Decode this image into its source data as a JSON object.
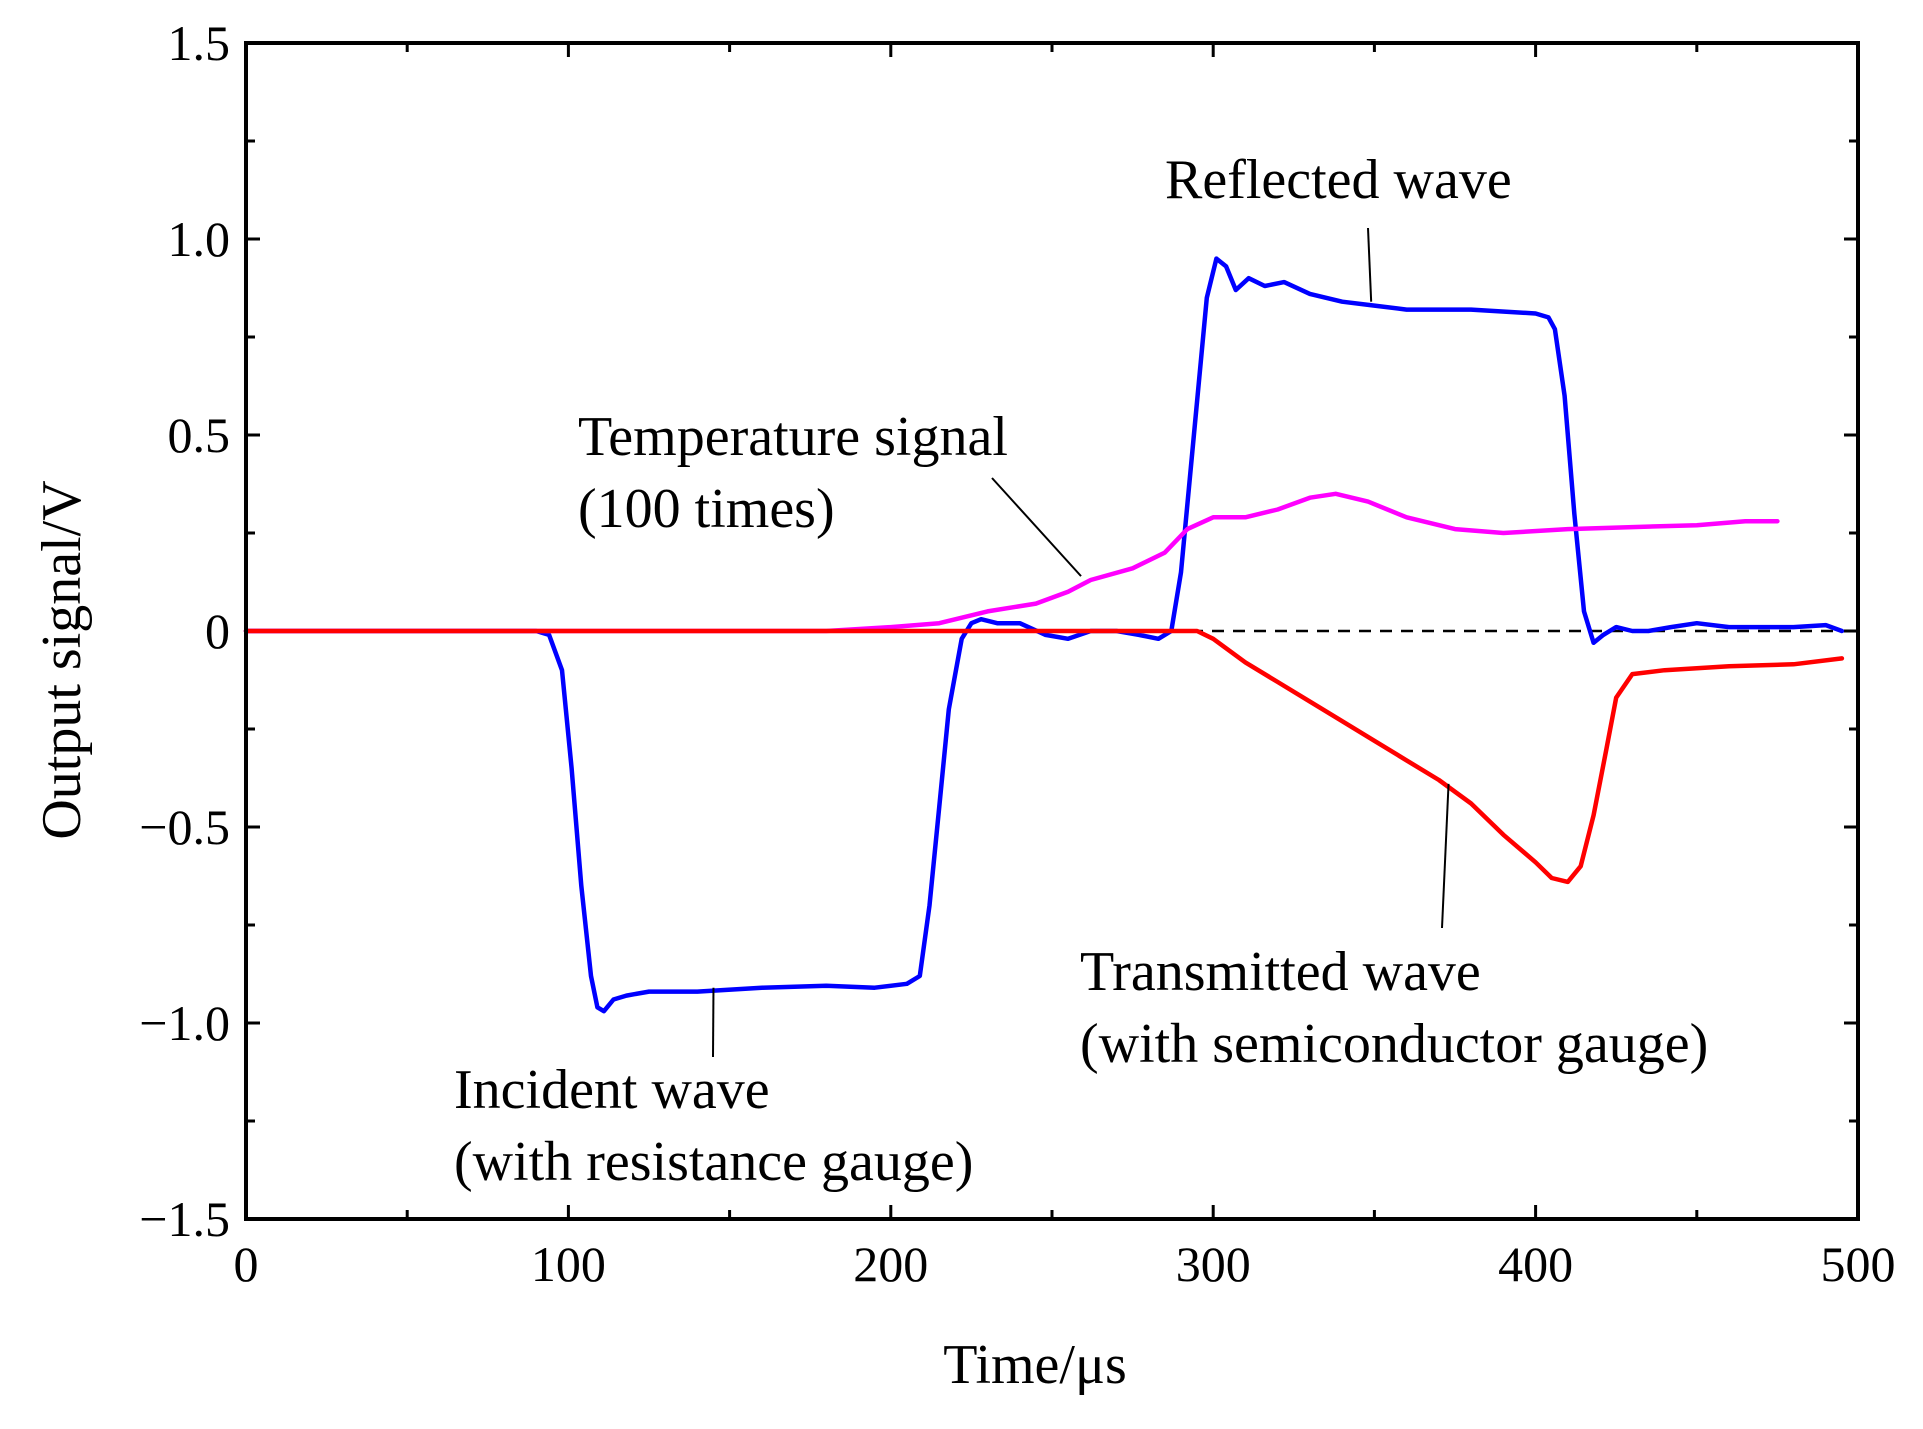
{
  "chart_data": {
    "type": "line",
    "xlabel": "Time/μs",
    "ylabel": "Output signal/V",
    "xlim": [
      0,
      500
    ],
    "ylim": [
      -1.5,
      1.5
    ],
    "x_ticks": [
      0,
      100,
      200,
      300,
      400,
      500
    ],
    "x_tick_labels": [
      "0",
      "100",
      "200",
      "300",
      "400",
      "500"
    ],
    "y_ticks": [
      -1.5,
      -1.0,
      -0.5,
      0,
      0.5,
      1.0,
      1.5
    ],
    "y_tick_labels": [
      "−1.5",
      "−1.0",
      "−0.5",
      "0",
      "0.5",
      "1.0",
      "1.5"
    ],
    "grid": false,
    "zero_reference_line": {
      "y": 0,
      "style": "dashed",
      "color": "#000000"
    },
    "series": [
      {
        "key": "incident_reflected",
        "color": "#0000ff",
        "points": [
          [
            0,
            0.0
          ],
          [
            90,
            0.0
          ],
          [
            94,
            -0.01
          ],
          [
            98,
            -0.1
          ],
          [
            101,
            -0.35
          ],
          [
            104,
            -0.65
          ],
          [
            107,
            -0.88
          ],
          [
            109,
            -0.96
          ],
          [
            111,
            -0.97
          ],
          [
            114,
            -0.94
          ],
          [
            118,
            -0.93
          ],
          [
            125,
            -0.92
          ],
          [
            140,
            -0.92
          ],
          [
            160,
            -0.91
          ],
          [
            180,
            -0.905
          ],
          [
            195,
            -0.91
          ],
          [
            205,
            -0.9
          ],
          [
            209,
            -0.88
          ],
          [
            212,
            -0.7
          ],
          [
            215,
            -0.45
          ],
          [
            218,
            -0.2
          ],
          [
            222,
            -0.02
          ],
          [
            225,
            0.02
          ],
          [
            228,
            0.03
          ],
          [
            233,
            0.02
          ],
          [
            240,
            0.02
          ],
          [
            248,
            -0.01
          ],
          [
            255,
            -0.02
          ],
          [
            262,
            0.0
          ],
          [
            270,
            0.0
          ],
          [
            277,
            -0.01
          ],
          [
            283,
            -0.02
          ],
          [
            287,
            0.0
          ],
          [
            290,
            0.15
          ],
          [
            294,
            0.5
          ],
          [
            298,
            0.85
          ],
          [
            301,
            0.95
          ],
          [
            304,
            0.93
          ],
          [
            307,
            0.87
          ],
          [
            311,
            0.9
          ],
          [
            316,
            0.88
          ],
          [
            322,
            0.89
          ],
          [
            330,
            0.86
          ],
          [
            340,
            0.84
          ],
          [
            350,
            0.83
          ],
          [
            360,
            0.82
          ],
          [
            380,
            0.82
          ],
          [
            400,
            0.81
          ],
          [
            404,
            0.8
          ],
          [
            406,
            0.77
          ],
          [
            409,
            0.6
          ],
          [
            412,
            0.3
          ],
          [
            415,
            0.05
          ],
          [
            418,
            -0.03
          ],
          [
            421,
            -0.01
          ],
          [
            425,
            0.01
          ],
          [
            430,
            0.0
          ],
          [
            435,
            0.0
          ],
          [
            442,
            0.01
          ],
          [
            450,
            0.02
          ],
          [
            460,
            0.01
          ],
          [
            480,
            0.01
          ],
          [
            490,
            0.015
          ],
          [
            495,
            0.0
          ]
        ]
      },
      {
        "key": "temperature",
        "color": "#ff00ff",
        "points": [
          [
            0,
            0.0
          ],
          [
            180,
            0.0
          ],
          [
            200,
            0.01
          ],
          [
            215,
            0.02
          ],
          [
            230,
            0.05
          ],
          [
            245,
            0.07
          ],
          [
            255,
            0.1
          ],
          [
            262,
            0.13
          ],
          [
            275,
            0.16
          ],
          [
            285,
            0.2
          ],
          [
            292,
            0.26
          ],
          [
            300,
            0.29
          ],
          [
            310,
            0.29
          ],
          [
            320,
            0.31
          ],
          [
            330,
            0.34
          ],
          [
            338,
            0.35
          ],
          [
            348,
            0.33
          ],
          [
            360,
            0.29
          ],
          [
            375,
            0.26
          ],
          [
            390,
            0.25
          ],
          [
            410,
            0.26
          ],
          [
            430,
            0.265
          ],
          [
            450,
            0.27
          ],
          [
            465,
            0.28
          ],
          [
            475,
            0.28
          ]
        ]
      },
      {
        "key": "transmitted",
        "color": "#ff0000",
        "points": [
          [
            0,
            0.0
          ],
          [
            295,
            0.0
          ],
          [
            300,
            -0.02
          ],
          [
            310,
            -0.08
          ],
          [
            320,
            -0.13
          ],
          [
            330,
            -0.18
          ],
          [
            340,
            -0.23
          ],
          [
            350,
            -0.28
          ],
          [
            360,
            -0.33
          ],
          [
            370,
            -0.38
          ],
          [
            380,
            -0.44
          ],
          [
            390,
            -0.52
          ],
          [
            400,
            -0.59
          ],
          [
            405,
            -0.63
          ],
          [
            410,
            -0.64
          ],
          [
            414,
            -0.6
          ],
          [
            418,
            -0.47
          ],
          [
            422,
            -0.3
          ],
          [
            425,
            -0.17
          ],
          [
            430,
            -0.11
          ],
          [
            440,
            -0.1
          ],
          [
            460,
            -0.09
          ],
          [
            480,
            -0.085
          ],
          [
            495,
            -0.07
          ]
        ]
      }
    ],
    "annotations": [
      {
        "key": "reflected",
        "lines": [
          "Reflected wave"
        ],
        "leader_from": [
          349,
          0.84
        ]
      },
      {
        "key": "temperature",
        "lines": [
          "Temperature signal",
          "(100 times)"
        ],
        "leader_from": [
          259,
          0.14
        ]
      },
      {
        "key": "incident",
        "lines": [
          "Incident wave",
          "(with resistance gauge)"
        ],
        "leader_from": [
          145,
          -0.91
        ]
      },
      {
        "key": "transmitted",
        "lines": [
          "Transmitted wave",
          "(with semiconductor gauge)"
        ],
        "leader_from": [
          373,
          -0.39
        ]
      }
    ]
  }
}
